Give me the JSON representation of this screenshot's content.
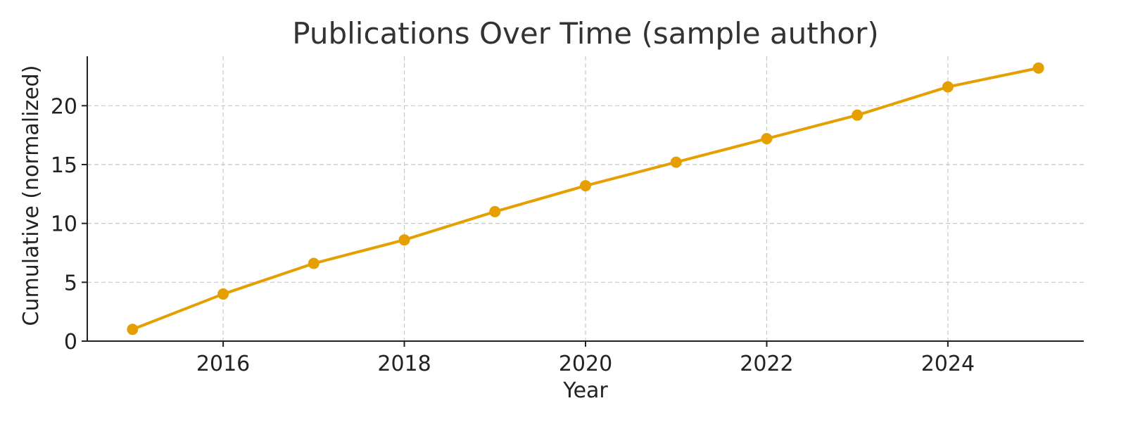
{
  "chart_data": {
    "type": "line",
    "title": "Publications Over Time (sample author)",
    "xlabel": "Year",
    "ylabel": "Cumulative (normalized)",
    "x": [
      2015,
      2016,
      2017,
      2018,
      2019,
      2020,
      2021,
      2022,
      2023,
      2024,
      2025
    ],
    "xlim": [
      2014.5,
      2025.5
    ],
    "ylim": [
      0,
      24.2
    ],
    "xticks": [
      2016,
      2018,
      2020,
      2022,
      2024
    ],
    "yticks": [
      0,
      5,
      10,
      15,
      20
    ],
    "grid": true,
    "series": [
      {
        "color": "#E69F00",
        "marker": "circle",
        "values": [
          1.0,
          4.0,
          6.6,
          8.6,
          11.0,
          13.2,
          15.2,
          17.2,
          19.2,
          21.6,
          23.2
        ]
      }
    ]
  }
}
